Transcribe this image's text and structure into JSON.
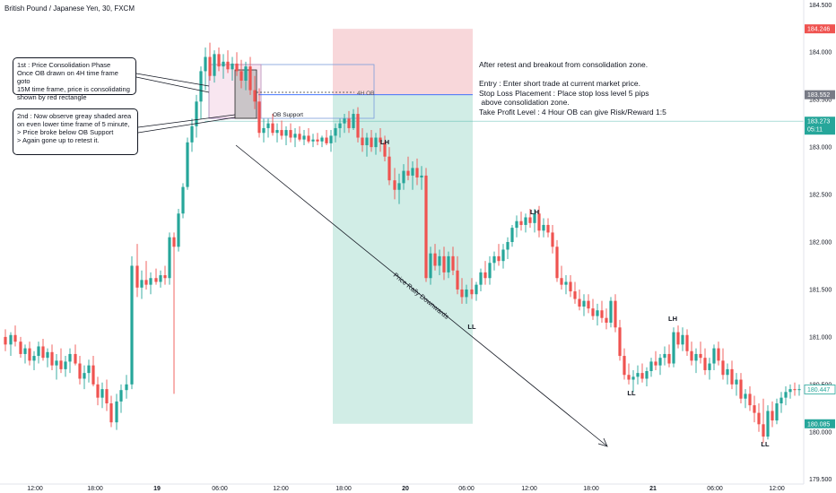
{
  "chart_data": {
    "type": "candlestick",
    "title": "British Pound / Japanese Yen, 30, FXCM",
    "y_range": [
      179.45,
      184.55
    ],
    "y_ticks": [
      "184.500",
      "184.000",
      "183.500",
      "183.000",
      "182.500",
      "182.000",
      "181.500",
      "181.000",
      "180.500",
      "180.000",
      "179.500"
    ],
    "x_ticks": [
      "12:00",
      "18:00",
      "19",
      "06:00",
      "12:00",
      "18:00",
      "20",
      "06:00",
      "12:00",
      "18:00",
      "21",
      "06:00",
      "12:00"
    ],
    "bullish_color": "#26a69a",
    "bearish_color": "#ef5350",
    "price_labels": [
      {
        "text": "184.246",
        "value": 184.246,
        "color": "#ef5350"
      },
      {
        "text": "183.552",
        "value": 183.552,
        "color": "#787b86"
      },
      {
        "text": "183.273",
        "value": 183.273,
        "color": "#26a69a",
        "sub": "05:11"
      },
      {
        "text": "180.447",
        "value": 180.447,
        "color": "#26a69a",
        "outline": true
      },
      {
        "text": "180.085",
        "value": 180.085,
        "color": "#26a69a"
      }
    ],
    "trade": {
      "entry": 183.552,
      "stop_loss": 184.246,
      "take_profit": 180.085,
      "loss_color": "#f8d7da",
      "profit_color": "#d1ede6"
    },
    "zones": {
      "ob_4h_label": "4H OB",
      "ob_support_label": "OB Support"
    },
    "swing_labels": [
      "LH",
      "LL",
      "LH",
      "LL",
      "LH",
      "LL"
    ],
    "arrow_label": "Price Rally Downwards"
  },
  "annotations": {
    "box1": [
      "1st : Price Consolidation Phase",
      "Once OB drawn on 4H time frame goto",
      "15M time frame, price is consolidating",
      "shown by red rectangle"
    ],
    "box2": [
      "2nd : Now observe greay shaded area",
      "on even lower time frame of 5 minute,",
      "> Price broke below OB Support",
      "> Again gone up to retest it."
    ],
    "right_text": [
      "After retest and breakout from consolidation zone.",
      "",
      "Entry : Enter short trade at current market price.",
      "Stop Loss Placement : Place stop loss level  5 pips",
      " above consolidation zone.",
      "Take Profit Level : 4 Hour  OB can give Risk/Reward 1:5"
    ]
  }
}
